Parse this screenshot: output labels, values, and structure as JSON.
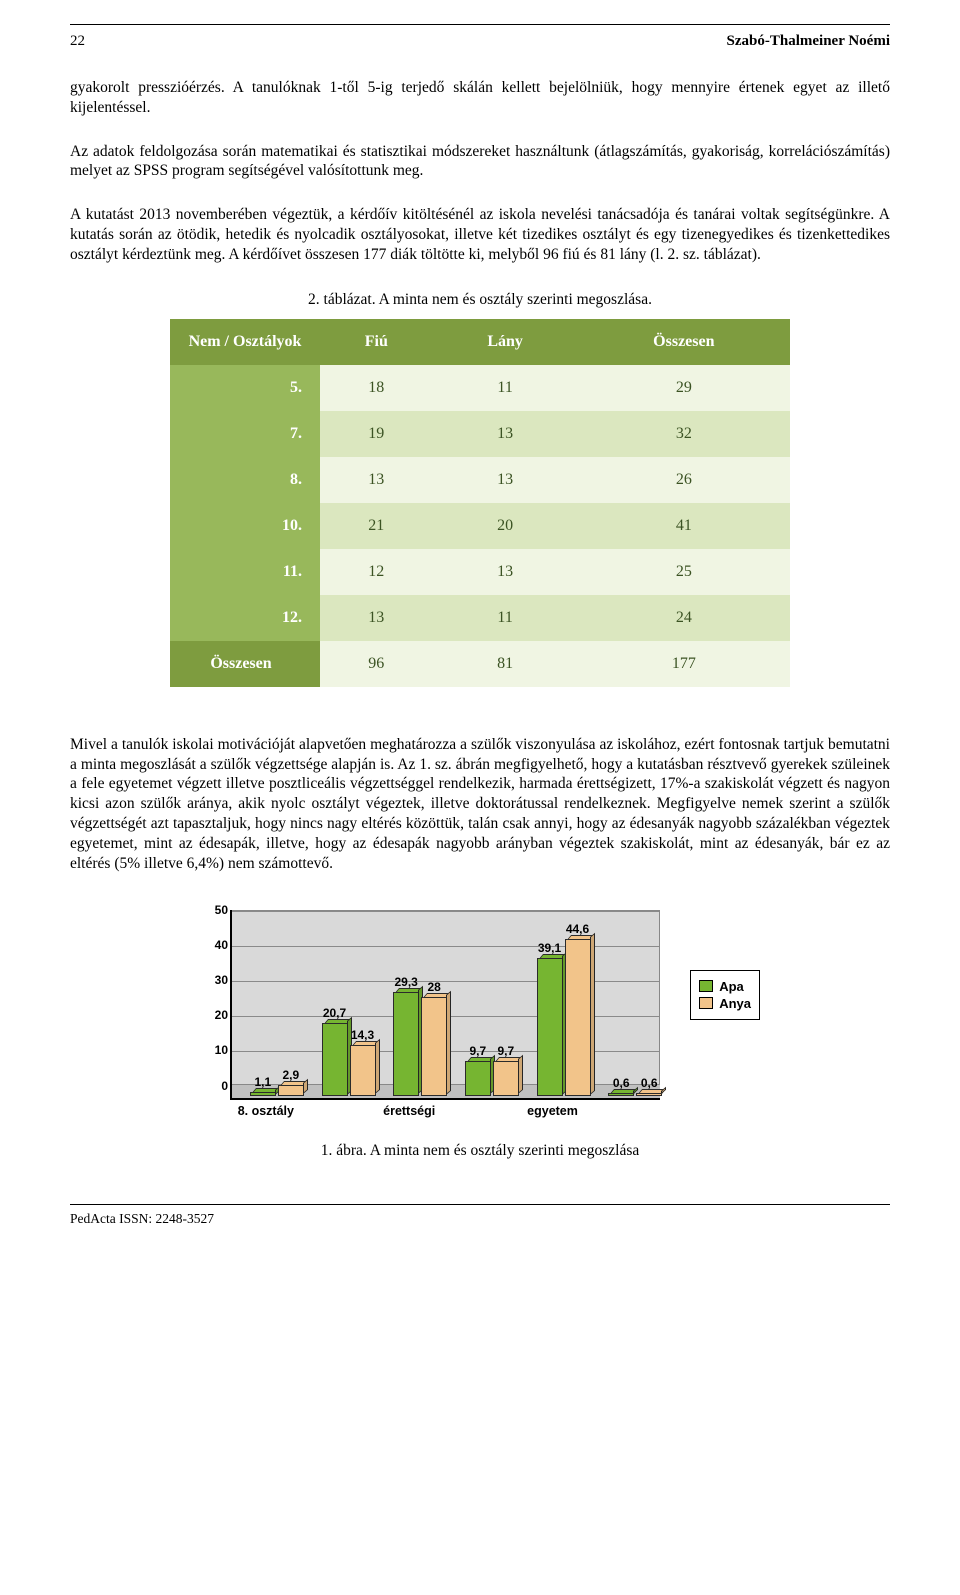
{
  "header": {
    "page_number": "22",
    "author": "Szabó-Thalmeiner Noémi"
  },
  "paragraphs": {
    "p1": "gyakorolt presszióérzés. A tanulóknak 1-től 5-ig terjedő skálán kellett bejelölniük, hogy mennyire értenek egyet az illető kijelentéssel.",
    "p2": "Az adatok feldolgozása során matematikai és statisztikai módszereket használtunk (átlagszámítás, gyakoriság, korrelációszámítás) melyet az SPSS program segítségével valósítottunk meg.",
    "p3": "A kutatást 2013 novemberében végeztük, a kérdőív kitöltésénél az iskola nevelési tanácsadója és tanárai voltak segítségünkre. A kutatás során az ötödik, hetedik és nyolcadik osztályosokat, illetve két tizedikes osztályt és egy tizenegyedikes és tizenkettedikes osztályt kérdeztünk meg. A kérdőívet összesen 177 diák töltötte ki, melyből 96 fiú és 81 lány (l. 2. sz. táblázat).",
    "p4": "Mivel a tanulók iskolai motivációját alapvetően meghatározza a szülők viszonyulása az iskolához, ezért fontosnak tartjuk bemutatni a minta megoszlását a szülők végzettsége alapján is. Az 1. sz. ábrán megfigyelhető, hogy a kutatásban résztvevő gyerekek szüleinek a fele egyetemet végzett illetve posztliceális végzettséggel rendelkezik, harmada érettségizett, 17%-a szakiskolát végzett és nagyon kicsi azon szülők aránya, akik nyolc osztályt végeztek, illetve doktorátussal rendelkeznek. Megfigyelve nemek szerint a szülők végzettségét azt tapasztaljuk, hogy nincs nagy eltérés közöttük, talán csak annyi, hogy az édesanyák nagyobb százalékban végeztek egyetemet, mint az édesapák, illetve, hogy az édesapák nagyobb arányban végeztek szakiskolát, mint az édesanyák, bár ez az eltérés (5% illetve 6,4%) nem számottevő."
  },
  "table": {
    "caption": "2. táblázat. A minta nem és osztály szerinti megoszlása.",
    "header_bg": "#7e9c3f",
    "rowlabel_bg": "#98b85b",
    "row_bg_odd": "#f0f5e3",
    "row_bg_even": "#dbe7bf",
    "headers": [
      "Nem / Osztályok",
      "Fiú",
      "Lány",
      "Összesen"
    ],
    "rows": [
      {
        "label": "5.",
        "cells": [
          "18",
          "11",
          "29"
        ]
      },
      {
        "label": "7.",
        "cells": [
          "19",
          "13",
          "32"
        ]
      },
      {
        "label": "8.",
        "cells": [
          "13",
          "13",
          "26"
        ]
      },
      {
        "label": "10.",
        "cells": [
          "21",
          "20",
          "41"
        ]
      },
      {
        "label": "11.",
        "cells": [
          "12",
          "13",
          "25"
        ]
      },
      {
        "label": "12.",
        "cells": [
          "13",
          "11",
          "24"
        ]
      },
      {
        "label": "Összesen",
        "cells": [
          "96",
          "81",
          "177"
        ]
      }
    ]
  },
  "chart": {
    "type": "bar",
    "y_max": 50,
    "y_ticks": [
      0,
      10,
      20,
      30,
      40,
      50
    ],
    "wall_bg": "#d9d9d9",
    "floor_bg": "#c0c0c0",
    "gridline_color": "#8a8a8a",
    "series": [
      {
        "name": "Apa",
        "color": "#76b531"
      },
      {
        "name": "Anya",
        "color": "#f2c48a"
      }
    ],
    "categories": [
      "8. osztály",
      "",
      "érettségi",
      "",
      "egyetem",
      ""
    ],
    "groups": [
      {
        "vals": [
          1.1,
          2.9
        ],
        "labels": [
          "1,1",
          "2,9"
        ]
      },
      {
        "vals": [
          20.7,
          14.3
        ],
        "labels": [
          "20,7",
          "14,3"
        ]
      },
      {
        "vals": [
          29.3,
          28
        ],
        "labels": [
          "29,3",
          "28"
        ]
      },
      {
        "vals": [
          9.7,
          9.7
        ],
        "labels": [
          "9,7",
          "9,7"
        ]
      },
      {
        "vals": [
          39.1,
          44.6
        ],
        "labels": [
          "39,1",
          "44,6"
        ]
      },
      {
        "vals": [
          0.6,
          0.6
        ],
        "labels": [
          "0,6",
          "0,6"
        ]
      }
    ],
    "caption": "1. ábra. A minta nem és osztály szerinti megoszlása"
  },
  "footer": {
    "text": "PedActa ISSN: 2248-3527"
  }
}
